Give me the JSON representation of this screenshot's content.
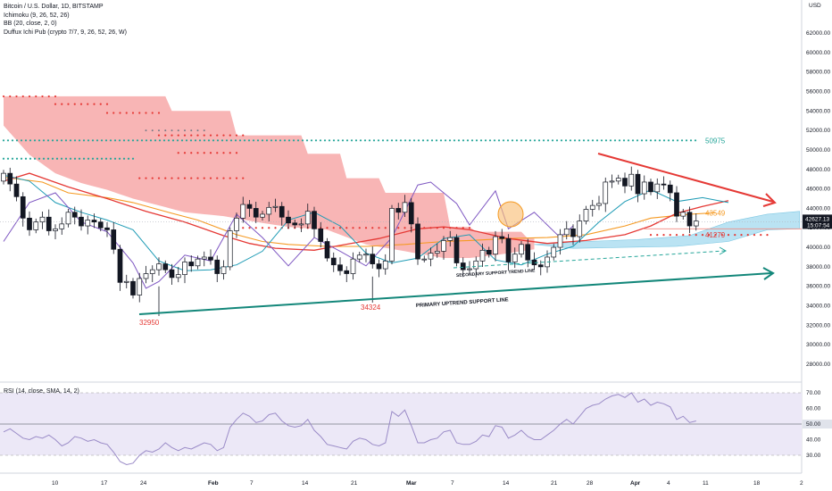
{
  "legend": {
    "line1": "Bitcoin / U.S. Dollar, 1D, BITSTAMP",
    "line2": "Ichimoku (9, 26, 52, 26)",
    "line3": "BB (20, close, 2, 0)",
    "line4": "Duffux Ichi Pub (crypto 7/7, 9, 26, 52, 26, W)"
  },
  "rsi_legend": "RSI (14, close, SMA, 14, 2)",
  "axis": {
    "currency": "USD",
    "price_ticks": [
      "62000.00",
      "60000.00",
      "58000.00",
      "56000.00",
      "54000.00",
      "52000.00",
      "50000.00",
      "48000.00",
      "46000.00",
      "44000.00",
      "42000.00",
      "40000.00",
      "38000.00",
      "36000.00",
      "34000.00",
      "32000.00",
      "30000.00",
      "28000.00"
    ],
    "rsi_ticks": [
      "70.00",
      "60.00",
      "40.00",
      "30.00"
    ],
    "x_ticks": [
      "10",
      "17",
      "24",
      "Feb",
      "7",
      "14",
      "21",
      "Mar",
      "7",
      "14",
      "21",
      "28",
      "Apr",
      "4",
      "11",
      "18",
      "2"
    ],
    "price_badge_value": "42627.13",
    "price_badge_time": "15:07:54",
    "rsi_badge": "50.00"
  },
  "colors": {
    "up": "#ffffff",
    "down": "#131722",
    "cloud_bear": "#f7a8a8",
    "cloud_bull": "#b3e0f2",
    "ma_red": "#e53935",
    "ma_orange": "#f59a23",
    "tenkan": "#1e9bb5",
    "chikou": "#7e57c2",
    "teal_line": "#13877a",
    "rsi_line": "#9a8bc7",
    "rsi_band": "#ece8f7"
  },
  "annotations": {
    "level_50975": "50975",
    "level_43549": "43549",
    "level_41279": "41279",
    "low_32950": "32950",
    "low_34324": "34324",
    "primary_line_label": "PRIMARY UPTREND SUPPORT LINE",
    "secondary_line_label": "SECONDARY SUPPORT TREND LINE"
  },
  "chart_data": {
    "type": "candlestick",
    "title": "Bitcoin / U.S. Dollar, 1D, BITSTAMP",
    "ylim": [
      26000,
      63500
    ],
    "x_tick_labels": [
      "10",
      "17",
      "24",
      "Feb",
      "7",
      "14",
      "21",
      "Mar",
      "7",
      "14",
      "21",
      "28",
      "Apr",
      "4",
      "11",
      "18",
      "2"
    ],
    "candles_close": [
      47600,
      46500,
      45200,
      43000,
      41800,
      42600,
      43100,
      41700,
      41900,
      42400,
      43600,
      43100,
      42200,
      42800,
      42600,
      42000,
      41800,
      39800,
      36400,
      36500,
      35100,
      36800,
      37300,
      37700,
      38300,
      37700,
      36900,
      37200,
      38500,
      38100,
      38800,
      39000,
      38700,
      37300,
      38000,
      41700,
      43000,
      44400,
      44000,
      43100,
      43400,
      44100,
      44200,
      43100,
      42500,
      42300,
      42400,
      43700,
      41900,
      40600,
      38900,
      38200,
      37600,
      37300,
      38800,
      39200,
      39300,
      38300,
      37800,
      38600,
      44000,
      43600,
      44600,
      42400,
      38800,
      38800,
      39400,
      39600,
      40700,
      41000,
      38400,
      37700,
      37800,
      38600,
      39700,
      39300,
      41100,
      40900,
      38500,
      39300,
      40300,
      38700,
      38200,
      38000,
      39000,
      40000,
      41300,
      41900,
      41100,
      42700,
      43900,
      44300,
      44500,
      46700,
      46800,
      47100,
      46300,
      47500,
      45500,
      46700,
      45700,
      46500,
      46400,
      45600,
      43200,
      43600,
      42200,
      42700
    ],
    "candles_open": [
      46800,
      47600,
      46500,
      45200,
      43000,
      41800,
      42600,
      43100,
      41700,
      41900,
      42400,
      43600,
      43100,
      42200,
      42800,
      42600,
      42000,
      41800,
      39800,
      36400,
      36500,
      35100,
      36800,
      37300,
      37700,
      38300,
      37700,
      36900,
      37200,
      38500,
      38100,
      38800,
      39000,
      38700,
      37300,
      38000,
      41700,
      43000,
      44400,
      44000,
      43100,
      43400,
      44100,
      44200,
      43100,
      42500,
      42300,
      42400,
      43700,
      41900,
      40600,
      38900,
      38200,
      37600,
      37300,
      38800,
      39200,
      39300,
      38300,
      37800,
      38600,
      44000,
      43600,
      44600,
      42400,
      38800,
      38800,
      39400,
      39600,
      40700,
      41000,
      38400,
      37700,
      37800,
      38600,
      39700,
      39300,
      41100,
      40900,
      38500,
      39300,
      40300,
      38700,
      38200,
      38000,
      39000,
      40000,
      41300,
      41900,
      41100,
      42700,
      43900,
      44300,
      44500,
      46700,
      46800,
      47100,
      46300,
      47500,
      45500,
      46700,
      45700,
      46500,
      46400,
      45600,
      43200,
      43600,
      42200
    ],
    "price_levels": {
      "resistance_dotted": 50975,
      "tenkan_label": 43549,
      "kijun_label": 41279,
      "last_price": 42627.13
    },
    "lows_marked": [
      32950,
      34324
    ],
    "rsi": {
      "ylim": [
        20,
        75
      ],
      "bands": [
        30,
        70
      ],
      "mid": 50,
      "values": [
        45,
        47,
        44,
        41,
        40,
        42,
        41,
        43,
        40,
        36,
        38,
        42,
        41,
        39,
        40,
        38,
        37,
        32,
        26,
        24,
        25,
        30,
        33,
        32,
        34,
        38,
        35,
        33,
        35,
        34,
        36,
        38,
        37,
        33,
        35,
        48,
        53,
        57,
        55,
        51,
        52,
        56,
        57,
        52,
        49,
        48,
        49,
        53,
        46,
        42,
        37,
        36,
        35,
        34,
        39,
        41,
        40,
        37,
        36,
        38,
        58,
        55,
        59,
        49,
        38,
        38,
        40,
        41,
        45,
        46,
        38,
        37,
        37,
        39,
        43,
        42,
        49,
        48,
        41,
        43,
        46,
        42,
        40,
        40,
        43,
        46,
        50,
        53,
        50,
        55,
        60,
        62,
        63,
        66,
        68,
        69,
        67,
        70,
        64,
        66,
        62,
        64,
        63,
        61,
        53,
        55,
        51,
        52
      ]
    }
  }
}
